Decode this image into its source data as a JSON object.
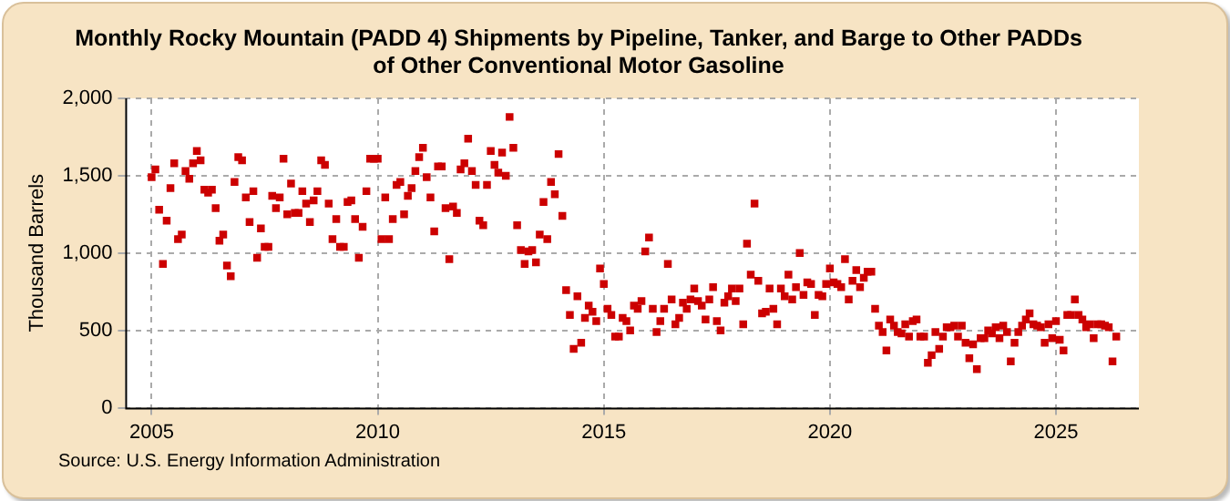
{
  "chart_data": {
    "type": "scatter",
    "title": "Monthly Rocky Mountain (PADD 4) Shipments by Pipeline, Tanker, and Barge to Other PADDs\nof Other Conventional Motor Gasoline",
    "ylabel": "Thousand Barrels",
    "annotations": [
      "Source: U.S. Energy Information Administration"
    ],
    "x": [
      "2005-01",
      "2005-02",
      "2005-03",
      "2005-04",
      "2005-05",
      "2005-06",
      "2005-07",
      "2005-08",
      "2005-09",
      "2005-10",
      "2005-11",
      "2005-12",
      "2006-01",
      "2006-02",
      "2006-03",
      "2006-04",
      "2006-05",
      "2006-06",
      "2006-07",
      "2006-08",
      "2006-09",
      "2006-10",
      "2006-11",
      "2006-12",
      "2007-01",
      "2007-02",
      "2007-03",
      "2007-04",
      "2007-05",
      "2007-06",
      "2007-07",
      "2007-08",
      "2007-09",
      "2007-10",
      "2007-11",
      "2007-12",
      "2008-01",
      "2008-02",
      "2008-03",
      "2008-04",
      "2008-05",
      "2008-06",
      "2008-07",
      "2008-08",
      "2008-09",
      "2008-10",
      "2008-11",
      "2008-12",
      "2009-01",
      "2009-02",
      "2009-03",
      "2009-04",
      "2009-05",
      "2009-06",
      "2009-07",
      "2009-08",
      "2009-09",
      "2009-10",
      "2009-11",
      "2009-12",
      "2010-01",
      "2010-02",
      "2010-03",
      "2010-04",
      "2010-05",
      "2010-06",
      "2010-07",
      "2010-08",
      "2010-09",
      "2010-10",
      "2010-11",
      "2010-12",
      "2011-01",
      "2011-02",
      "2011-03",
      "2011-04",
      "2011-05",
      "2011-06",
      "2011-07",
      "2011-08",
      "2011-09",
      "2011-10",
      "2011-11",
      "2011-12",
      "2012-01",
      "2012-02",
      "2012-03",
      "2012-04",
      "2012-05",
      "2012-06",
      "2012-07",
      "2012-08",
      "2012-09",
      "2012-10",
      "2012-11",
      "2012-12",
      "2013-01",
      "2013-02",
      "2013-03",
      "2013-04",
      "2013-05",
      "2013-06",
      "2013-07",
      "2013-08",
      "2013-09",
      "2013-10",
      "2013-11",
      "2013-12",
      "2014-01",
      "2014-02",
      "2014-03",
      "2014-04",
      "2014-05",
      "2014-06",
      "2014-07",
      "2014-08",
      "2014-09",
      "2014-10",
      "2014-11",
      "2014-12",
      "2015-01",
      "2015-02",
      "2015-03",
      "2015-04",
      "2015-05",
      "2015-06",
      "2015-07",
      "2015-08",
      "2015-09",
      "2015-10",
      "2015-11",
      "2015-12",
      "2016-01",
      "2016-02",
      "2016-03",
      "2016-04",
      "2016-05",
      "2016-06",
      "2016-07",
      "2016-08",
      "2016-09",
      "2016-10",
      "2016-11",
      "2016-12",
      "2017-01",
      "2017-02",
      "2017-03",
      "2017-04",
      "2017-05",
      "2017-06",
      "2017-07",
      "2017-08",
      "2017-09",
      "2017-10",
      "2017-11",
      "2017-12",
      "2018-01",
      "2018-02",
      "2018-03",
      "2018-04",
      "2018-05",
      "2018-06",
      "2018-07",
      "2018-08",
      "2018-09",
      "2018-10",
      "2018-11",
      "2018-12",
      "2019-01",
      "2019-02",
      "2019-03",
      "2019-04",
      "2019-05",
      "2019-06",
      "2019-07",
      "2019-08",
      "2019-09",
      "2019-10",
      "2019-11",
      "2019-12",
      "2020-01",
      "2020-02",
      "2020-03",
      "2020-04",
      "2020-05",
      "2020-06",
      "2020-07",
      "2020-08",
      "2020-09",
      "2020-10",
      "2020-11",
      "2020-12",
      "2021-01",
      "2021-02",
      "2021-03",
      "2021-04",
      "2021-05",
      "2021-06",
      "2021-07",
      "2021-08",
      "2021-09",
      "2021-10",
      "2021-11",
      "2021-12",
      "2022-01",
      "2022-02",
      "2022-03",
      "2022-04",
      "2022-05",
      "2022-06",
      "2022-07",
      "2022-08",
      "2022-09",
      "2022-10",
      "2022-11",
      "2022-12",
      "2023-01",
      "2023-02",
      "2023-03",
      "2023-04",
      "2023-05",
      "2023-06",
      "2023-07",
      "2023-08",
      "2023-09",
      "2023-10",
      "2023-11",
      "2023-12",
      "2024-01",
      "2024-02",
      "2024-03",
      "2024-04",
      "2024-05",
      "2024-06",
      "2024-07",
      "2024-08",
      "2024-09",
      "2024-10",
      "2024-11",
      "2024-12",
      "2025-01",
      "2025-02",
      "2025-03",
      "2025-04",
      "2025-05",
      "2025-06",
      "2025-07",
      "2025-08",
      "2025-09",
      "2025-10",
      "2025-11",
      "2025-12",
      "2026-01",
      "2026-02",
      "2026-03",
      "2026-04",
      "2026-05"
    ],
    "series": [
      {
        "color": "#cc0000",
        "values": [
          1490,
          1540,
          1280,
          930,
          1210,
          1420,
          1580,
          1090,
          1120,
          1530,
          1480,
          1580,
          1660,
          1600,
          1410,
          1390,
          1410,
          1290,
          1080,
          1120,
          920,
          850,
          1460,
          1620,
          1600,
          1360,
          1200,
          1400,
          970,
          1160,
          1040,
          1040,
          1370,
          1290,
          1360,
          1610,
          1250,
          1450,
          1260,
          1260,
          1400,
          1320,
          1200,
          1340,
          1400,
          1600,
          1570,
          1320,
          1090,
          1220,
          1040,
          1040,
          1330,
          1340,
          1220,
          970,
          1170,
          1400,
          1610,
          1610,
          1610,
          1090,
          1360,
          1090,
          1220,
          1440,
          1460,
          1250,
          1370,
          1420,
          1530,
          1620,
          1680,
          1490,
          1360,
          1140,
          1560,
          1560,
          1290,
          960,
          1300,
          1260,
          1540,
          1580,
          1740,
          1530,
          1440,
          1210,
          1180,
          1440,
          1660,
          1570,
          1520,
          1650,
          1500,
          1880,
          1680,
          1180,
          1020,
          930,
          1010,
          1020,
          940,
          1120,
          1330,
          1090,
          1460,
          1380,
          1640,
          1240,
          760,
          600,
          380,
          720,
          420,
          580,
          660,
          620,
          560,
          900,
          800,
          640,
          600,
          460,
          460,
          580,
          560,
          500,
          660,
          640,
          690,
          1010,
          1100,
          640,
          490,
          560,
          640,
          930,
          700,
          540,
          580,
          680,
          640,
          700,
          770,
          690,
          660,
          570,
          700,
          780,
          560,
          500,
          680,
          720,
          770,
          690,
          770,
          540,
          1060,
          860,
          1320,
          820,
          610,
          620,
          770,
          640,
          540,
          770,
          720,
          860,
          700,
          780,
          1000,
          730,
          810,
          800,
          600,
          730,
          720,
          800,
          900,
          810,
          800,
          780,
          960,
          700,
          820,
          890,
          780,
          840,
          880,
          880,
          640,
          530,
          490,
          370,
          570,
          530,
          490,
          480,
          540,
          460,
          560,
          570,
          460,
          460,
          290,
          340,
          490,
          380,
          460,
          520,
          520,
          530,
          460,
          530,
          420,
          320,
          410,
          250,
          450,
          450,
          500,
          480,
          520,
          450,
          530,
          490,
          300,
          420,
          490,
          530,
          570,
          610,
          540,
          530,
          520,
          420,
          540,
          450,
          560,
          440,
          370,
          600,
          600,
          700,
          600,
          570,
          520,
          540,
          450,
          540,
          540,
          530,
          520,
          300,
          460
        ]
      }
    ],
    "xlim": [
      "2004-06",
      "2026-11"
    ],
    "xticks": [
      "2005",
      "2010",
      "2015",
      "2020",
      "2025"
    ],
    "ylim": [
      0,
      2000
    ],
    "yticks": [
      0,
      500,
      {
        "value": 1000,
        "label": "1,000"
      },
      {
        "value": 1500,
        "label": "1,500"
      },
      {
        "value": 2000,
        "label": "2,000"
      }
    ],
    "grid": true,
    "marker": "square",
    "legend": false
  }
}
